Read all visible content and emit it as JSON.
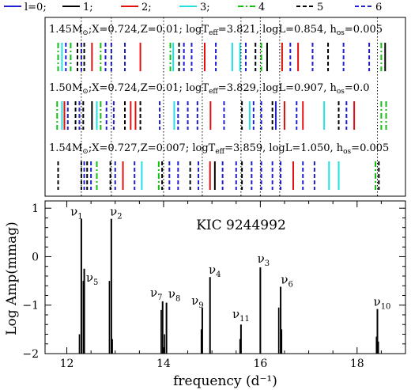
{
  "legend": {
    "items": [
      {
        "label": "l=0;",
        "color": "#1f1fd0",
        "dash": "solid"
      },
      {
        "label": "1;",
        "color": "#000000",
        "dash": "solid"
      },
      {
        "label": "2;",
        "color": "#e01010",
        "dash": "solid"
      },
      {
        "label": "3;",
        "color": "#20e0e0",
        "dash": "solid"
      },
      {
        "label": "4",
        "color": "#10c010",
        "dash": "dashdot"
      },
      {
        "label": "5",
        "color": "#000000",
        "dash": "dashed"
      },
      {
        "label": "6",
        "color": "#1f1fd0",
        "dash": "dashed"
      }
    ]
  },
  "models": [
    {
      "label_html": "1.45M<tspan font-size='9' dy='3'>⊙</tspan><tspan dy='-3'>;X=0.724,Z=0.01;  logT</tspan><tspan font-size='9' dy='3'>eff</tspan><tspan dy='-3'>=3.821,  logL=0.854,  h</tspan><tspan font-size='9' dy='3'>os</tspan><tspan dy='-3'>=0.005</tspan>",
      "lines": [
        {
          "f": 11.82,
          "l": 4
        },
        {
          "f": 11.9,
          "l": 3
        },
        {
          "f": 11.98,
          "l": 6
        },
        {
          "f": 12.08,
          "l": 4
        },
        {
          "f": 12.22,
          "l": 5
        },
        {
          "f": 12.3,
          "l": 6
        },
        {
          "f": 12.36,
          "l": 5
        },
        {
          "f": 12.52,
          "l": 2
        },
        {
          "f": 12.7,
          "l": 4
        },
        {
          "f": 12.8,
          "l": 6
        },
        {
          "f": 12.92,
          "l": 6
        },
        {
          "f": 13.2,
          "l": 6
        },
        {
          "f": 13.52,
          "l": 2
        },
        {
          "f": 14.14,
          "l": 4
        },
        {
          "f": 14.2,
          "l": 3
        },
        {
          "f": 14.32,
          "l": 5
        },
        {
          "f": 14.42,
          "l": 6
        },
        {
          "f": 14.58,
          "l": 6
        },
        {
          "f": 14.85,
          "l": 2
        },
        {
          "f": 15.08,
          "l": 6
        },
        {
          "f": 15.42,
          "l": 3
        },
        {
          "f": 15.58,
          "l": 3
        },
        {
          "f": 15.7,
          "l": 6
        },
        {
          "f": 15.9,
          "l": 5
        },
        {
          "f": 16.02,
          "l": 4
        },
        {
          "f": 16.14,
          "l": 1
        },
        {
          "f": 16.45,
          "l": 2
        },
        {
          "f": 16.62,
          "l": 6
        },
        {
          "f": 16.78,
          "l": 2
        },
        {
          "f": 17.08,
          "l": 6
        },
        {
          "f": 17.4,
          "l": 5
        },
        {
          "f": 17.72,
          "l": 6
        },
        {
          "f": 18.25,
          "l": 6
        },
        {
          "f": 18.5,
          "l": 4
        },
        {
          "f": 18.58,
          "l": 1
        }
      ]
    },
    {
      "label_html": "1.50M<tspan font-size='9' dy='3'>⊙</tspan><tspan dy='-3'>;X=0.724,Z=0.01;  logT</tspan><tspan font-size='9' dy='3'>eff</tspan><tspan dy='-3'>=3.829,  logL=0.907,  h</tspan><tspan font-size='9' dy='3'>os</tspan><tspan dy='-3'>=0.0</tspan>",
      "lines": [
        {
          "f": 11.8,
          "l": 4
        },
        {
          "f": 11.9,
          "l": 3
        },
        {
          "f": 11.95,
          "l": 2
        },
        {
          "f": 12.02,
          "l": 6
        },
        {
          "f": 12.18,
          "l": 5
        },
        {
          "f": 12.26,
          "l": 6
        },
        {
          "f": 12.34,
          "l": 5
        },
        {
          "f": 12.52,
          "l": 1
        },
        {
          "f": 12.62,
          "l": 3
        },
        {
          "f": 12.7,
          "l": 4
        },
        {
          "f": 12.82,
          "l": 6
        },
        {
          "f": 12.97,
          "l": 6
        },
        {
          "f": 13.2,
          "l": 5
        },
        {
          "f": 13.32,
          "l": 2
        },
        {
          "f": 13.42,
          "l": 2
        },
        {
          "f": 13.52,
          "l": 5
        },
        {
          "f": 13.92,
          "l": 6
        },
        {
          "f": 14.22,
          "l": 3
        },
        {
          "f": 14.3,
          "l": 6
        },
        {
          "f": 14.5,
          "l": 6
        },
        {
          "f": 14.7,
          "l": 6
        },
        {
          "f": 14.97,
          "l": 2
        },
        {
          "f": 15.25,
          "l": 6
        },
        {
          "f": 15.62,
          "l": 5
        },
        {
          "f": 15.78,
          "l": 3
        },
        {
          "f": 15.86,
          "l": 6
        },
        {
          "f": 16.02,
          "l": 6
        },
        {
          "f": 16.25,
          "l": 5
        },
        {
          "f": 16.32,
          "l": 0
        },
        {
          "f": 16.5,
          "l": 2
        },
        {
          "f": 16.75,
          "l": 6
        },
        {
          "f": 16.88,
          "l": 2
        },
        {
          "f": 17.32,
          "l": 3
        },
        {
          "f": 17.62,
          "l": 5
        },
        {
          "f": 17.78,
          "l": 6
        },
        {
          "f": 17.94,
          "l": 2
        },
        {
          "f": 18.5,
          "l": 4
        },
        {
          "f": 18.6,
          "l": 4
        }
      ]
    },
    {
      "label_html": "1.54M<tspan font-size='9' dy='3'>⊙</tspan><tspan dy='-3'>;X=0.727,Z=0.007;  logT</tspan><tspan font-size='9' dy='3'>eff</tspan><tspan dy='-3'>=3.859,  logL=1.050,  h</tspan><tspan font-size='9' dy='3'>os</tspan><tspan dy='-3'>=0.005</tspan>",
      "lines": [
        {
          "f": 11.82,
          "l": 5
        },
        {
          "f": 12.3,
          "l": 5
        },
        {
          "f": 12.36,
          "l": 6
        },
        {
          "f": 12.42,
          "l": 5
        },
        {
          "f": 12.5,
          "l": 6
        },
        {
          "f": 12.62,
          "l": 4
        },
        {
          "f": 12.9,
          "l": 5
        },
        {
          "f": 13.0,
          "l": 6
        },
        {
          "f": 13.16,
          "l": 2
        },
        {
          "f": 13.4,
          "l": 6
        },
        {
          "f": 13.55,
          "l": 3
        },
        {
          "f": 13.9,
          "l": 4
        },
        {
          "f": 13.97,
          "l": 5
        },
        {
          "f": 14.12,
          "l": 6
        },
        {
          "f": 14.3,
          "l": 6
        },
        {
          "f": 14.55,
          "l": 5
        },
        {
          "f": 14.72,
          "l": 6
        },
        {
          "f": 14.96,
          "l": 2
        },
        {
          "f": 15.06,
          "l": 1
        },
        {
          "f": 15.22,
          "l": 6
        },
        {
          "f": 15.5,
          "l": 6
        },
        {
          "f": 15.62,
          "l": 5
        },
        {
          "f": 15.82,
          "l": 6
        },
        {
          "f": 16.02,
          "l": 6
        },
        {
          "f": 16.25,
          "l": 6
        },
        {
          "f": 16.42,
          "l": 6
        },
        {
          "f": 16.68,
          "l": 2
        },
        {
          "f": 16.88,
          "l": 6
        },
        {
          "f": 17.12,
          "l": 6
        },
        {
          "f": 17.42,
          "l": 3
        },
        {
          "f": 17.62,
          "l": 3
        },
        {
          "f": 18.38,
          "l": 4
        },
        {
          "f": 18.45,
          "l": 5
        }
      ]
    }
  ],
  "observed_frequencies": [
    12.3,
    12.92,
    14.0,
    14.8,
    15.6,
    16.0,
    16.4,
    18.42
  ],
  "chart_data": {
    "type": "bar",
    "annotation": "KIC 9244992",
    "xlabel": "frequency (d⁻¹)",
    "ylabel": "Log Amp(mmag)",
    "xlim": [
      11.55,
      19.0
    ],
    "ylim": [
      -2,
      1.15
    ],
    "xticks": [
      12,
      14,
      16,
      18
    ],
    "yticks": [
      -2,
      -1,
      0,
      1
    ],
    "grid": false,
    "peaks": [
      {
        "label": "ν1",
        "x": 12.3,
        "y": 0.78
      },
      {
        "label": "ν2",
        "x": 12.92,
        "y": 0.78
      },
      {
        "label": "ν3",
        "x": 16.0,
        "y": -0.22
      },
      {
        "label": "ν4",
        "x": 14.96,
        "y": -0.42
      },
      {
        "label": "ν5",
        "x": 12.36,
        "y": -0.25
      },
      {
        "label": "ν6",
        "x": 16.42,
        "y": -0.62
      },
      {
        "label": "ν7",
        "x": 13.98,
        "y": -0.92
      },
      {
        "label": "ν8",
        "x": 14.06,
        "y": -0.95
      },
      {
        "label": "ν9",
        "x": 14.8,
        "y": -1.05
      },
      {
        "label": "ν10",
        "x": 18.42,
        "y": -1.08
      },
      {
        "label": "ν11",
        "x": 15.6,
        "y": -1.4
      }
    ],
    "minor_peaks": [
      {
        "x": 12.34,
        "y": -0.5
      },
      {
        "x": 12.88,
        "y": -0.5
      },
      {
        "x": 13.95,
        "y": -1.1
      },
      {
        "x": 14.78,
        "y": -1.5
      },
      {
        "x": 15.58,
        "y": -1.7
      },
      {
        "x": 16.38,
        "y": -1.05
      },
      {
        "x": 18.4,
        "y": -1.65
      },
      {
        "x": 18.44,
        "y": -1.75
      },
      {
        "x": 12.26,
        "y": -1.6
      },
      {
        "x": 12.94,
        "y": -1.7
      },
      {
        "x": 14.02,
        "y": -1.6
      },
      {
        "x": 16.44,
        "y": -1.5
      }
    ]
  }
}
